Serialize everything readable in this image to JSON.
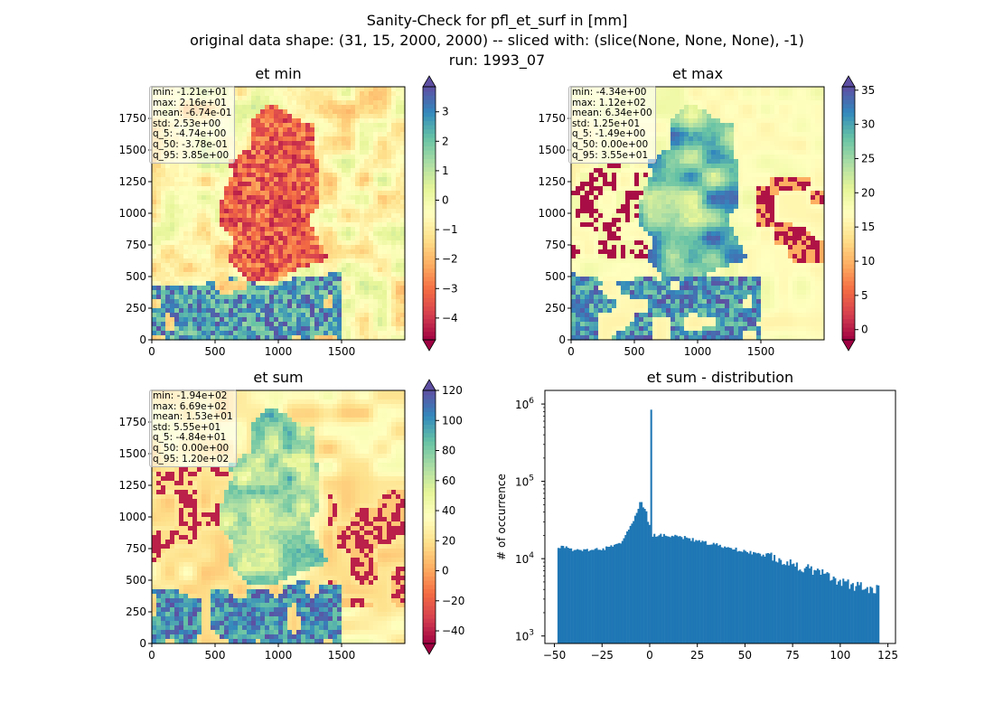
{
  "figure": {
    "title_lines": [
      "Sanity-Check for pfl_et_surf in [mm]",
      "original data shape: (31, 15, 2000, 2000) -- sliced with: (slice(None, None, None), -1)",
      "run: 1993_07"
    ]
  },
  "chart_data": [
    {
      "type": "heatmap",
      "title": "et min",
      "xlim": [
        0,
        2000
      ],
      "ylim": [
        0,
        2000
      ],
      "xticks": [
        0,
        500,
        1000,
        1500
      ],
      "yticks": [
        0,
        250,
        500,
        750,
        1000,
        1250,
        1500,
        1750
      ],
      "colorbar": {
        "colormap": "Spectral",
        "vmin": -4.74,
        "vmax": 3.85,
        "ticks": [
          -4,
          -3,
          -2,
          -1,
          0,
          1,
          2,
          3
        ],
        "extend": "both"
      },
      "stats": [
        "min: -1.21e+01",
        "max: 2.16e+01",
        "mean: -6.74e-01",
        "std: 2.53e+00",
        "q_5: -4.74e+00",
        "q_50: -3.78e-01",
        "q_95: 3.85e+00"
      ]
    },
    {
      "type": "heatmap",
      "title": "et max",
      "xlim": [
        0,
        2000
      ],
      "ylim": [
        0,
        2000
      ],
      "xticks": [
        0,
        500,
        1000,
        1500
      ],
      "yticks": [
        0,
        250,
        500,
        750,
        1000,
        1250,
        1500,
        1750
      ],
      "colorbar": {
        "colormap": "Spectral",
        "vmin": -1.49,
        "vmax": 35.5,
        "ticks": [
          0,
          5,
          10,
          15,
          20,
          25,
          30,
          35
        ],
        "extend": "both"
      },
      "stats": [
        "min: -4.34e+00",
        "max: 1.12e+02",
        "mean: 6.34e+00",
        "std: 1.25e+01",
        "q_5: -1.49e+00",
        "q_50: 0.00e+00",
        "q_95: 3.55e+01"
      ]
    },
    {
      "type": "heatmap",
      "title": "et sum",
      "xlim": [
        0,
        2000
      ],
      "ylim": [
        0,
        2000
      ],
      "xticks": [
        0,
        500,
        1000,
        1500
      ],
      "yticks": [
        0,
        250,
        500,
        750,
        1000,
        1250,
        1500,
        1750
      ],
      "colorbar": {
        "colormap": "Spectral",
        "vmin": -48.4,
        "vmax": 120,
        "ticks": [
          -40,
          -20,
          0,
          20,
          40,
          60,
          80,
          100,
          120
        ],
        "extend": "both"
      },
      "stats": [
        "min: -1.94e+02",
        "max: 6.69e+02",
        "mean: 1.53e+01",
        "std: 5.55e+01",
        "q_5: -4.84e+01",
        "q_50: 0.00e+00",
        "q_95: 1.20e+02"
      ]
    },
    {
      "type": "bar",
      "title": "et sum - distribution",
      "ylabel": "# of occurrence",
      "yscale": "log",
      "color": "#1f77b4",
      "xlim": [
        -55,
        129
      ],
      "ylim": [
        800,
        1500000
      ],
      "xticks": [
        -50,
        -25,
        0,
        25,
        50,
        75,
        100,
        125
      ],
      "yticks_label": [
        "10^3",
        "10^4",
        "10^5",
        "10^6"
      ],
      "bin_width": 0.84,
      "bins": [
        {
          "x": -48.4,
          "count": 14500
        },
        {
          "x": -45,
          "count": 14000
        },
        {
          "x": -40,
          "count": 13200
        },
        {
          "x": -35,
          "count": 12700
        },
        {
          "x": -30,
          "count": 12800
        },
        {
          "x": -25,
          "count": 13300
        },
        {
          "x": -20,
          "count": 14200
        },
        {
          "x": -15,
          "count": 17000
        },
        {
          "x": -10,
          "count": 27000
        },
        {
          "x": -7,
          "count": 42000
        },
        {
          "x": -5,
          "count": 55000
        },
        {
          "x": -2,
          "count": 40000
        },
        {
          "x": -1,
          "count": 28000
        },
        {
          "x": 0,
          "count": 800000
        },
        {
          "x": 1,
          "count": 20000
        },
        {
          "x": 5,
          "count": 20500
        },
        {
          "x": 10,
          "count": 20200
        },
        {
          "x": 15,
          "count": 19500
        },
        {
          "x": 20,
          "count": 18000
        },
        {
          "x": 30,
          "count": 16000
        },
        {
          "x": 40,
          "count": 14000
        },
        {
          "x": 50,
          "count": 12500
        },
        {
          "x": 60,
          "count": 11000
        },
        {
          "x": 70,
          "count": 9000
        },
        {
          "x": 80,
          "count": 7500
        },
        {
          "x": 90,
          "count": 6500
        },
        {
          "x": 100,
          "count": 5200
        },
        {
          "x": 110,
          "count": 4300
        },
        {
          "x": 120,
          "count": 4200
        }
      ]
    }
  ]
}
